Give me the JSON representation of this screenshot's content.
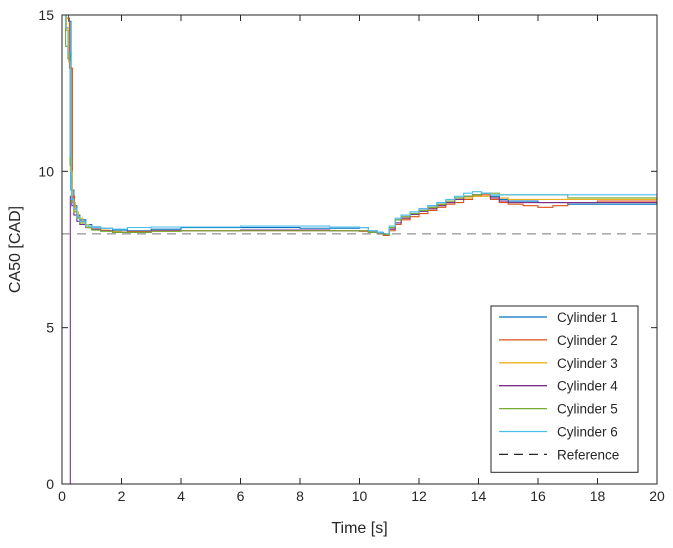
{
  "chart_data": {
    "type": "line",
    "title": "",
    "xlabel": "Time [s]",
    "ylabel": "CA50 [CAD]",
    "xlim": [
      0,
      20
    ],
    "ylim": [
      0,
      15
    ],
    "xticks": [
      0,
      2,
      4,
      6,
      8,
      10,
      12,
      14,
      16,
      18,
      20
    ],
    "yticks": [
      0,
      5,
      10,
      15
    ],
    "grid": false,
    "legend_position": "bottom-right",
    "series": [
      {
        "name": "Cylinder 1",
        "color": "#0072BD",
        "step": true,
        "x": [
          0,
          0.15,
          0.22,
          0.3,
          0.4,
          0.5,
          0.6,
          0.8,
          1,
          1.3,
          1.7,
          2.2,
          3,
          4,
          6,
          8,
          9,
          10,
          10.3,
          10.6,
          10.8,
          11,
          11.2,
          11.4,
          11.7,
          12,
          12.3,
          12.6,
          12.9,
          13.2,
          13.5,
          13.8,
          14.1,
          14.4,
          14.7,
          15,
          16,
          17,
          18,
          20
        ],
        "y": [
          15,
          15,
          14.8,
          9.4,
          8.9,
          8.6,
          8.45,
          8.3,
          8.22,
          8.18,
          8.12,
          8.1,
          8.15,
          8.2,
          8.2,
          8.18,
          8.18,
          8.2,
          8.1,
          8.05,
          8.0,
          8.2,
          8.45,
          8.6,
          8.7,
          8.8,
          8.9,
          8.95,
          9.05,
          9.15,
          9.2,
          9.25,
          9.3,
          9.2,
          9.1,
          9.05,
          9.0,
          8.95,
          8.95,
          8.95
        ]
      },
      {
        "name": "Cylinder 2",
        "color": "#D95319",
        "step": true,
        "x": [
          0,
          0.15,
          0.25,
          0.3,
          0.35,
          0.42,
          0.5,
          0.6,
          0.8,
          1,
          1.3,
          1.7,
          2.2,
          3,
          4,
          6,
          8,
          9,
          10,
          10.3,
          10.6,
          10.8,
          11,
          11.2,
          11.4,
          11.7,
          12,
          12.3,
          12.6,
          12.9,
          13.2,
          13.5,
          13.8,
          14.1,
          14.4,
          14.7,
          15,
          15.5,
          16,
          16.5,
          17,
          18,
          20
        ],
        "y": [
          15,
          14.9,
          13.3,
          13.3,
          9.2,
          8.8,
          8.55,
          8.4,
          8.25,
          8.15,
          8.1,
          8.05,
          8.08,
          8.1,
          8.1,
          8.1,
          8.1,
          8.1,
          8.08,
          8.05,
          8.0,
          7.95,
          8.1,
          8.3,
          8.45,
          8.55,
          8.65,
          8.75,
          8.85,
          8.95,
          9.0,
          9.1,
          9.2,
          9.25,
          9.1,
          9.0,
          8.95,
          8.9,
          8.85,
          8.9,
          9.0,
          9.05,
          9.05
        ]
      },
      {
        "name": "Cylinder 3",
        "color": "#EDB120",
        "step": true,
        "x": [
          0,
          0.15,
          0.22,
          0.28,
          0.35,
          0.45,
          0.55,
          0.7,
          0.9,
          1.2,
          1.6,
          2,
          3,
          4,
          6,
          8,
          9,
          10,
          10.3,
          10.6,
          10.8,
          11,
          11.2,
          11.4,
          11.7,
          12,
          12.3,
          12.6,
          12.9,
          13.2,
          13.5,
          13.8,
          14.1,
          14.4,
          14.7,
          15,
          16,
          17,
          18,
          20
        ],
        "y": [
          15,
          14.5,
          13.5,
          10.0,
          9.0,
          8.7,
          8.5,
          8.3,
          8.2,
          8.12,
          8.08,
          8.05,
          8.08,
          8.1,
          8.12,
          8.12,
          8.1,
          8.1,
          8.05,
          8.0,
          7.98,
          8.15,
          8.35,
          8.5,
          8.62,
          8.72,
          8.82,
          8.92,
          9.0,
          9.1,
          9.15,
          9.2,
          9.2,
          9.15,
          9.15,
          9.1,
          9.1,
          9.1,
          9.1,
          9.1
        ]
      },
      {
        "name": "Cylinder 4",
        "color": "#7E2F8E",
        "step": true,
        "x": [
          0,
          0.1,
          0.25,
          0.28,
          0.33,
          0.4,
          0.5,
          0.6,
          0.8,
          1,
          1.3,
          1.7,
          2.2,
          3,
          4,
          6,
          8,
          9,
          10,
          10.3,
          10.6,
          10.8,
          11,
          11.2,
          11.4,
          11.7,
          12,
          12.3,
          12.6,
          12.9,
          13.2,
          13.5,
          13.8,
          14.1,
          14.4,
          14.7,
          15,
          16,
          17,
          18,
          20
        ],
        "y": [
          0,
          0,
          0,
          9.2,
          8.9,
          8.6,
          8.4,
          8.3,
          8.2,
          8.15,
          8.1,
          8.05,
          8.05,
          8.1,
          8.1,
          8.12,
          8.12,
          8.1,
          8.1,
          8.05,
          8.0,
          7.98,
          8.15,
          8.35,
          8.5,
          8.62,
          8.72,
          8.8,
          8.9,
          9.0,
          9.1,
          9.2,
          9.25,
          9.3,
          9.15,
          9.05,
          9.0,
          9.0,
          9.0,
          9.0,
          9.0
        ]
      },
      {
        "name": "Cylinder 5",
        "color": "#77AC30",
        "step": true,
        "x": [
          0,
          0.12,
          0.2,
          0.27,
          0.32,
          0.4,
          0.5,
          0.6,
          0.8,
          1,
          1.3,
          1.7,
          2.2,
          3,
          4,
          6,
          8,
          9,
          10,
          10.3,
          10.6,
          10.8,
          11,
          11.2,
          11.4,
          11.7,
          12,
          12.3,
          12.6,
          12.9,
          13.2,
          13.5,
          13.8,
          14.1,
          14.4,
          14.7,
          15,
          16,
          17,
          18,
          20
        ],
        "y": [
          15,
          14.0,
          13.6,
          10.2,
          9.0,
          8.7,
          8.5,
          8.35,
          8.2,
          8.12,
          8.08,
          8.05,
          8.05,
          8.08,
          8.1,
          8.1,
          8.1,
          8.1,
          8.1,
          8.05,
          8.0,
          7.98,
          8.2,
          8.45,
          8.55,
          8.65,
          8.75,
          8.85,
          8.95,
          9.05,
          9.15,
          9.2,
          9.25,
          9.3,
          9.3,
          9.25,
          9.25,
          9.25,
          9.15,
          9.15,
          9.15
        ]
      },
      {
        "name": "Cylinder 6",
        "color": "#4DBEEE",
        "step": true,
        "x": [
          0,
          0.12,
          0.2,
          0.27,
          0.32,
          0.4,
          0.5,
          0.6,
          0.8,
          1,
          1.3,
          1.7,
          2.2,
          3,
          4,
          6,
          8,
          9,
          10,
          10.3,
          10.6,
          10.8,
          11,
          11.2,
          11.4,
          11.7,
          12,
          12.3,
          12.6,
          12.9,
          13.2,
          13.5,
          13.8,
          14.1,
          14.4,
          14.7,
          15,
          16,
          17,
          18,
          20
        ],
        "y": [
          15,
          14.6,
          13.8,
          10.5,
          9.1,
          8.8,
          8.55,
          8.4,
          8.25,
          8.2,
          8.18,
          8.15,
          8.2,
          8.22,
          8.22,
          8.25,
          8.25,
          8.22,
          8.2,
          8.1,
          8.05,
          8.0,
          8.25,
          8.5,
          8.6,
          8.7,
          8.8,
          8.9,
          9.0,
          9.1,
          9.2,
          9.3,
          9.35,
          9.3,
          9.25,
          9.25,
          9.25,
          9.25,
          9.25,
          9.25,
          9.25
        ]
      },
      {
        "name": "Reference",
        "color": "#262626",
        "dashed": true,
        "step": false,
        "x": [
          0,
          20
        ],
        "y": [
          8,
          8
        ]
      }
    ]
  }
}
